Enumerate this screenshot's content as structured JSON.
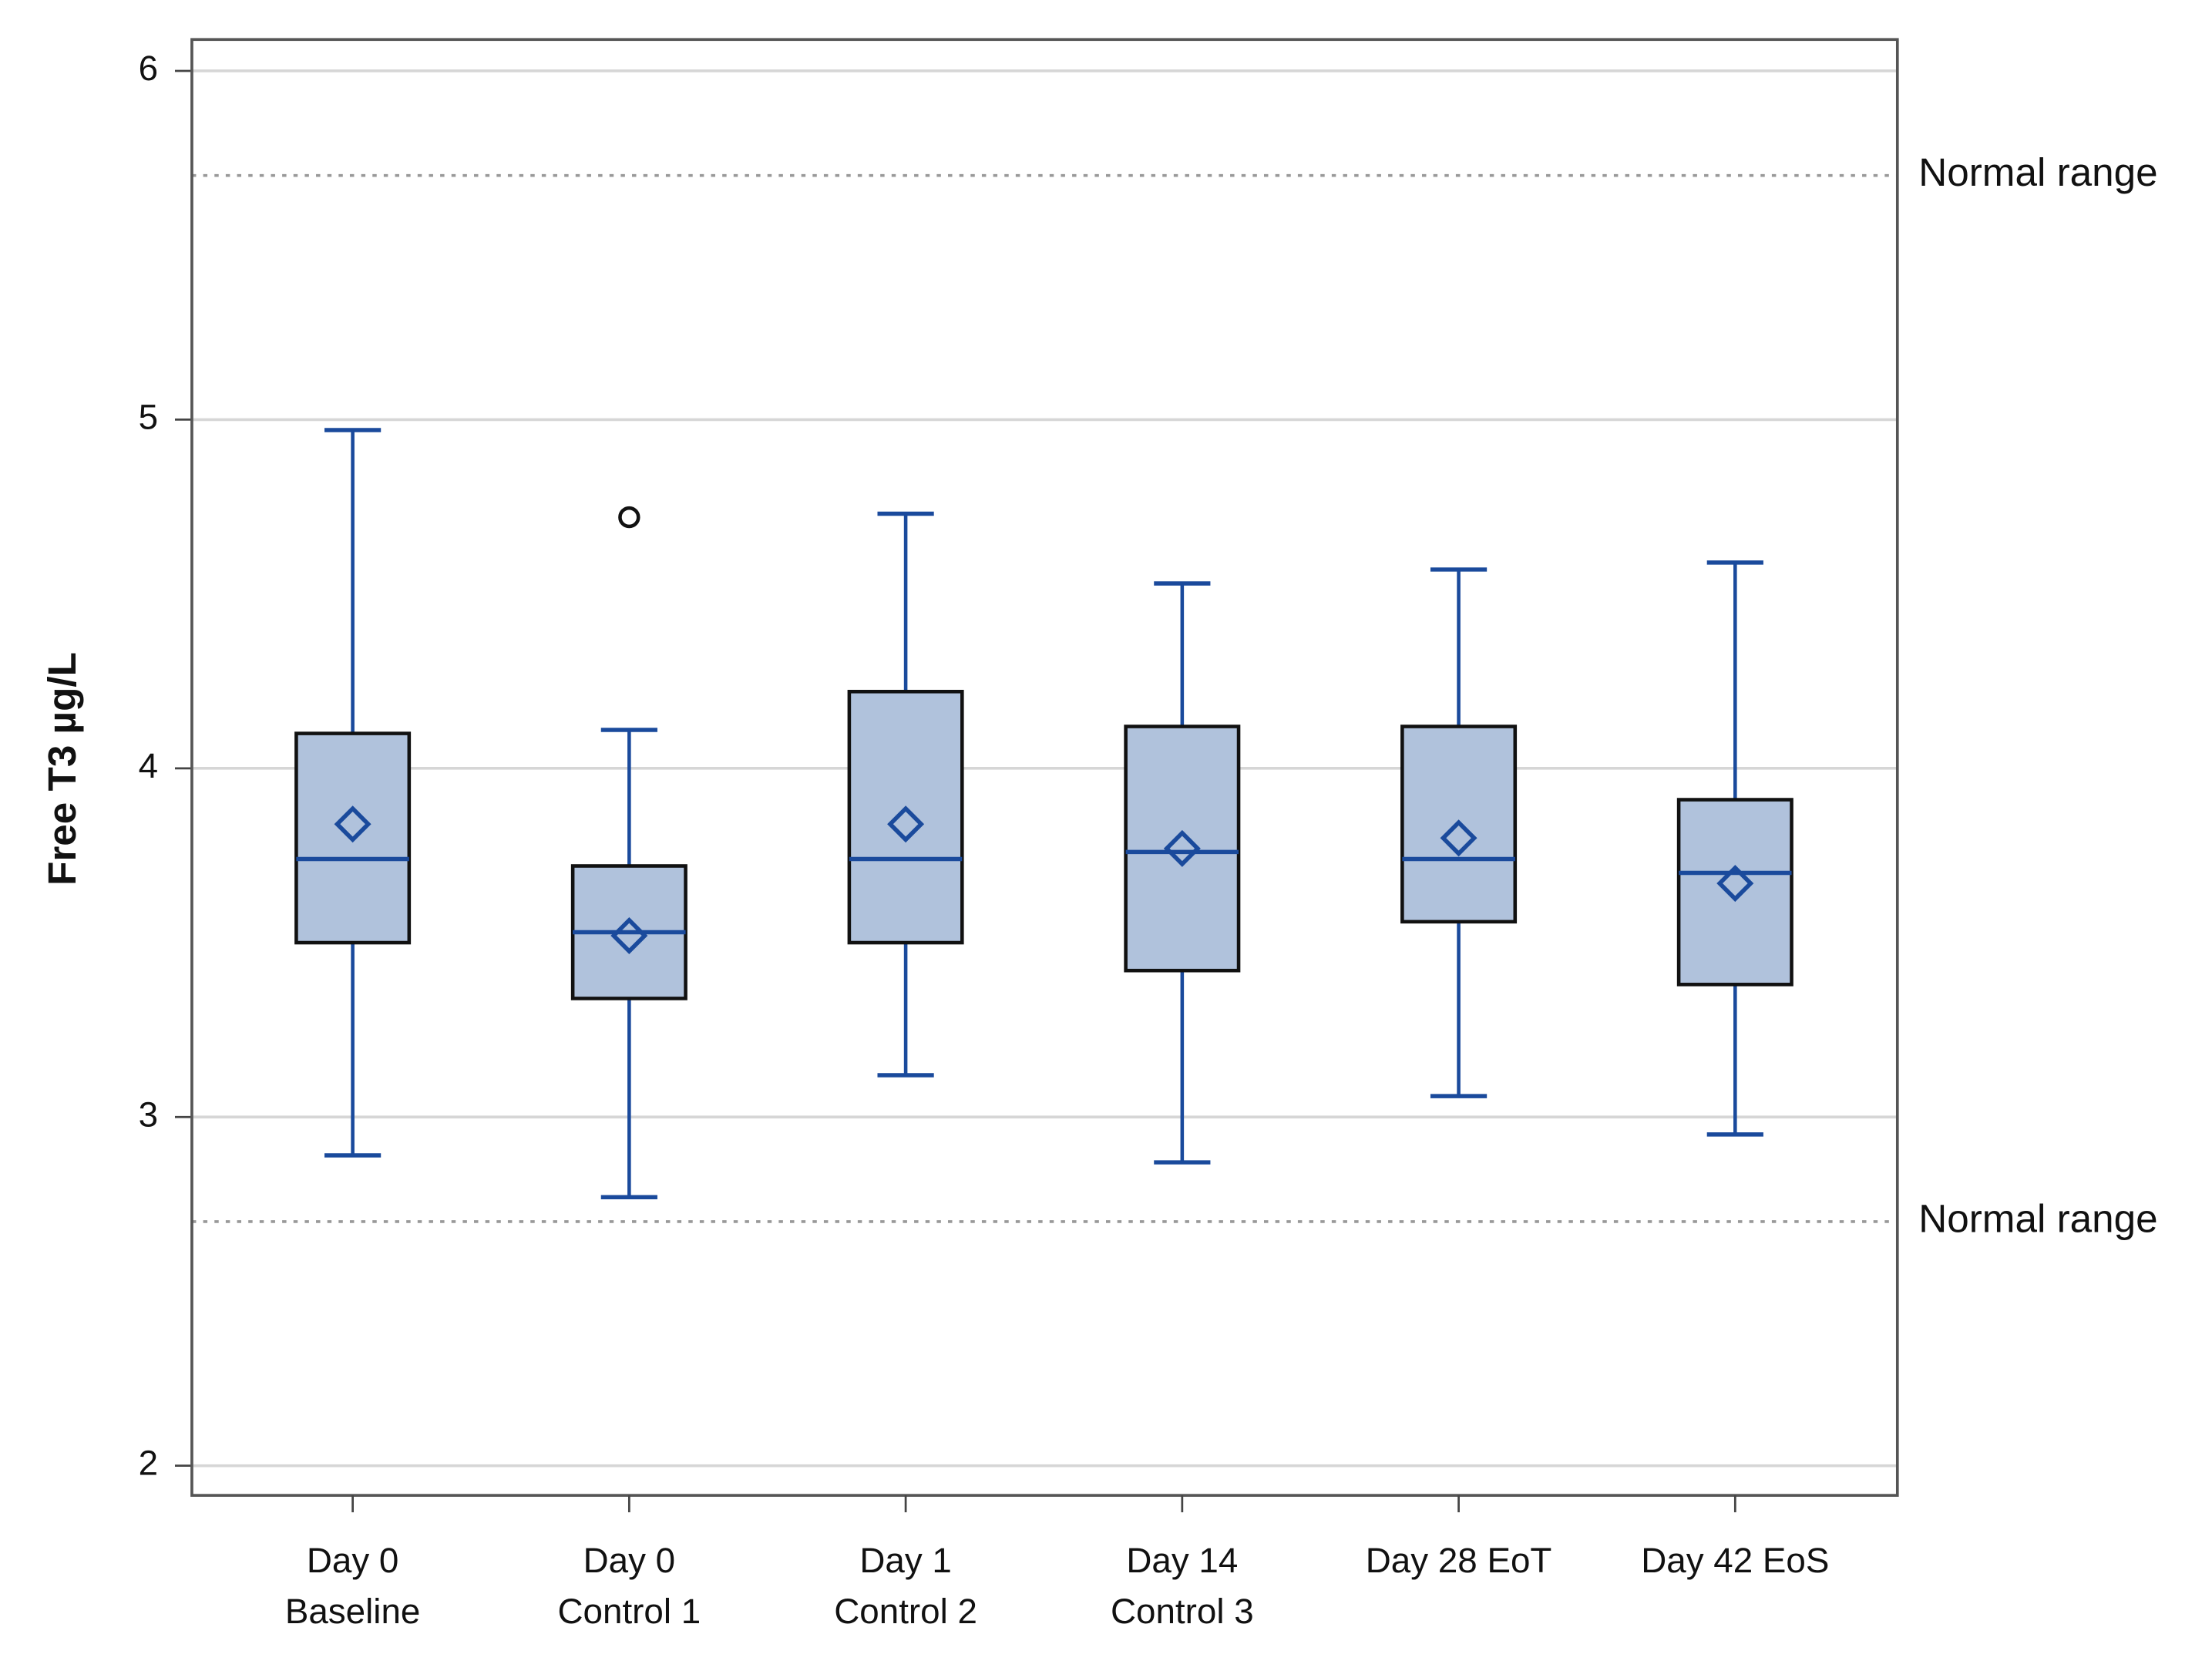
{
  "chart_data": {
    "type": "box",
    "y_label": "Free T3  µg/L",
    "categories": [
      "Day 0\nBaseline",
      "Day 0\nControl 1",
      "Day 1\nControl 2",
      "Day 14\nControl 3",
      "Day 28 EoT",
      "Day 42 EoS"
    ],
    "box_color": "#b0c2dc",
    "line_color": "#1a4a9c",
    "boxes": [
      {
        "whisker_low": 2.89,
        "q1": 3.5,
        "median": 3.74,
        "q3": 4.1,
        "whisker_high": 4.97,
        "mean": 3.84,
        "outliers": []
      },
      {
        "whisker_low": 2.77,
        "q1": 3.34,
        "median": 3.53,
        "q3": 3.72,
        "whisker_high": 4.11,
        "mean": 3.52,
        "outliers": [
          4.72
        ]
      },
      {
        "whisker_low": 3.12,
        "q1": 3.5,
        "median": 3.74,
        "q3": 4.22,
        "whisker_high": 4.73,
        "mean": 3.84,
        "outliers": []
      },
      {
        "whisker_low": 2.87,
        "q1": 3.42,
        "median": 3.76,
        "q3": 4.12,
        "whisker_high": 4.53,
        "mean": 3.77,
        "outliers": []
      },
      {
        "whisker_low": 3.06,
        "q1": 3.56,
        "median": 3.74,
        "q3": 4.12,
        "whisker_high": 4.57,
        "mean": 3.8,
        "outliers": []
      },
      {
        "whisker_low": 2.95,
        "q1": 3.38,
        "median": 3.7,
        "q3": 3.91,
        "whisker_high": 4.59,
        "mean": 3.67,
        "outliers": []
      }
    ],
    "reference_lines": [
      {
        "value": 5.7,
        "label": "Normal range"
      },
      {
        "value": 2.7,
        "label": "Normal range"
      }
    ],
    "ylim": [
      1.915,
      6.09
    ],
    "yticks": [
      2,
      3,
      4,
      5,
      6
    ],
    "grid": true
  }
}
